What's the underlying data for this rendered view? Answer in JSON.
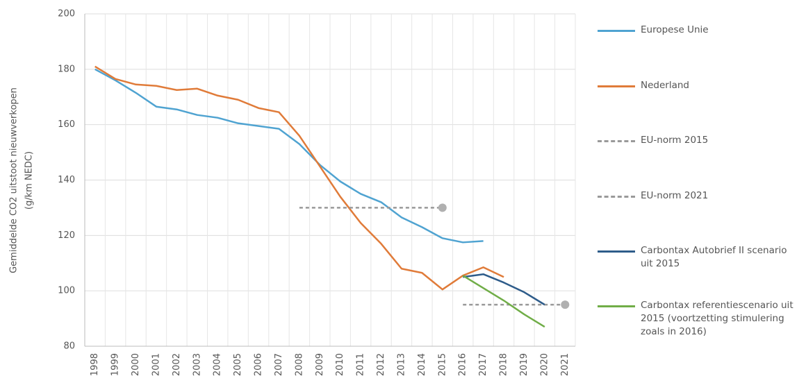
{
  "chart_data": {
    "type": "line",
    "y_label": [
      "Gemiddelde CO2 uitstoot nieuwverkopen",
      "(g/km NEDC)"
    ],
    "categories": [
      "1998",
      "1999",
      "2000",
      "2001",
      "2002",
      "2003",
      "2004",
      "2005",
      "2006",
      "2007",
      "2008",
      "2009",
      "2010",
      "2011",
      "2012",
      "2013",
      "2014",
      "2015",
      "2016",
      "2017",
      "2018",
      "2019",
      "2020",
      "2021"
    ],
    "ylim": [
      80,
      200
    ],
    "yticks": [
      80,
      100,
      120,
      140,
      160,
      180,
      200
    ],
    "grid": true,
    "series": [
      {
        "name": "Europese Unie",
        "color": "#4fa3d1",
        "values": [
          180,
          176,
          171.5,
          166.5,
          165.5,
          163.5,
          162.5,
          160.5,
          159.5,
          158.5,
          153,
          145.5,
          139.5,
          135,
          132,
          126.5,
          123,
          119,
          117.5,
          118,
          null,
          null,
          null,
          null
        ]
      },
      {
        "name": "Nederland",
        "color": "#e07b39",
        "values": [
          181,
          176.5,
          174.5,
          174,
          172.5,
          173,
          170.5,
          169,
          166,
          164.5,
          156,
          145,
          134,
          124.5,
          117,
          108,
          106.5,
          100.5,
          105.5,
          108.5,
          105,
          null,
          null,
          null
        ]
      },
      {
        "name": "EU-norm 2015",
        "color": "#999999",
        "dashed": true,
        "end_marker": true,
        "values": [
          null,
          null,
          null,
          null,
          null,
          null,
          null,
          null,
          null,
          null,
          130,
          130,
          130,
          130,
          130,
          130,
          130,
          130,
          null,
          null,
          null,
          null,
          null,
          null
        ]
      },
      {
        "name": "EU-norm 2021",
        "color": "#999999",
        "dashed": true,
        "end_marker": true,
        "values": [
          null,
          null,
          null,
          null,
          null,
          null,
          null,
          null,
          null,
          null,
          null,
          null,
          null,
          null,
          null,
          null,
          null,
          null,
          95,
          95,
          95,
          95,
          95,
          95
        ]
      },
      {
        "name": "Carbontax Autobrief II scenario uit 2015",
        "color": "#2e5c8a",
        "values": [
          null,
          null,
          null,
          null,
          null,
          null,
          null,
          null,
          null,
          null,
          null,
          null,
          null,
          null,
          null,
          null,
          null,
          null,
          105,
          106,
          103,
          99.5,
          95,
          null
        ]
      },
      {
        "name": "Carbontax referentiescenario uit 2015 (voortzetting stimulering zoals in 2016)",
        "color": "#70ad47",
        "values": [
          null,
          null,
          null,
          null,
          null,
          null,
          null,
          null,
          null,
          null,
          null,
          null,
          null,
          null,
          null,
          null,
          null,
          null,
          105.5,
          101,
          96.5,
          91.5,
          87,
          null
        ]
      }
    ]
  }
}
